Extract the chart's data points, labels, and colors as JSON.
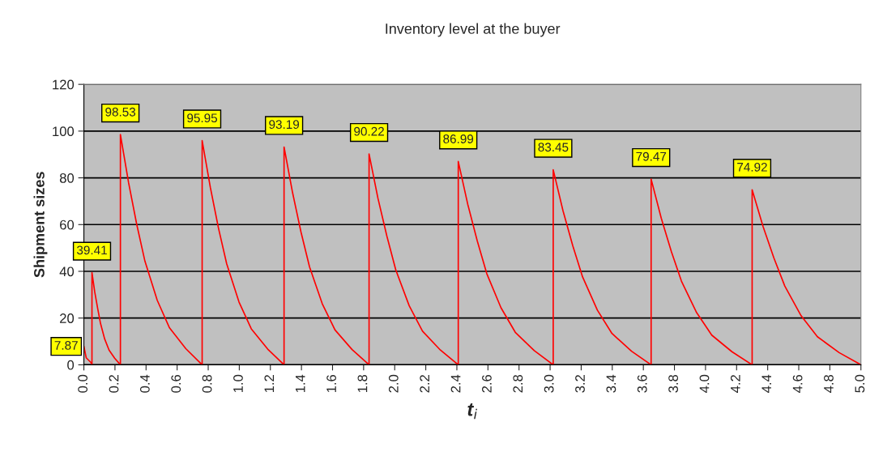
{
  "chart_data": {
    "type": "line",
    "title": "Inventory level at the buyer",
    "xlabel": "t$_{i}$",
    "ylabel": "Shipment sizes",
    "x": [
      0,
      0.015,
      0.045,
      0.052,
      0.052,
      0.07,
      0.089,
      0.107,
      0.134,
      0.162,
      0.198,
      0.235,
      0.235,
      0.288,
      0.34,
      0.393,
      0.472,
      0.551,
      0.656,
      0.761,
      0.761,
      0.814,
      0.866,
      0.919,
      0.998,
      1.077,
      1.183,
      1.288,
      1.288,
      1.343,
      1.397,
      1.452,
      1.534,
      1.616,
      1.726,
      1.835,
      1.835,
      1.892,
      1.95,
      2.007,
      2.093,
      2.179,
      2.294,
      2.409,
      2.409,
      2.47,
      2.531,
      2.592,
      2.684,
      2.776,
      2.898,
      3.02,
      3.02,
      3.083,
      3.146,
      3.209,
      3.304,
      3.398,
      3.524,
      3.65,
      3.65,
      3.715,
      3.78,
      3.845,
      3.943,
      4.04,
      4.17,
      4.3,
      4.3,
      4.37,
      4.44,
      4.51,
      4.615,
      4.72,
      4.86,
      5.0
    ],
    "series": [
      {
        "color": "#ff0000",
        "values": [
          7.87,
          3,
          1,
          0,
          39.41,
          31.1,
          24.0,
          17.7,
          11.0,
          6.3,
          2.8,
          0,
          98.53,
          77.8,
          60.1,
          44.3,
          27.6,
          15.8,
          6.9,
          0,
          95.95,
          75.8,
          58.5,
          43.2,
          26.9,
          15.4,
          6.7,
          0,
          93.19,
          73.6,
          56.8,
          41.9,
          26.1,
          14.9,
          6.5,
          0,
          90.22,
          71.3,
          55.0,
          40.6,
          25.3,
          14.4,
          6.3,
          0,
          86.99,
          68.7,
          53.1,
          39.1,
          24.4,
          13.9,
          6.1,
          0,
          83.45,
          65.9,
          50.9,
          37.6,
          23.4,
          13.4,
          5.8,
          0,
          79.47,
          62.8,
          48.5,
          35.8,
          22.3,
          12.7,
          5.6,
          0,
          74.92,
          59.2,
          45.7,
          33.7,
          21.0,
          12.0,
          5.2,
          0
        ],
        "value_labels": [
          "7.87",
          null,
          null,
          null,
          "39.41",
          null,
          null,
          null,
          null,
          null,
          null,
          null,
          "98.53",
          null,
          null,
          null,
          null,
          null,
          null,
          null,
          "95.95",
          null,
          null,
          null,
          null,
          null,
          null,
          null,
          "93.19",
          null,
          null,
          null,
          null,
          null,
          null,
          null,
          "90.22",
          null,
          null,
          null,
          null,
          null,
          null,
          null,
          "86.99",
          null,
          null,
          null,
          null,
          null,
          null,
          null,
          "83.45",
          null,
          null,
          null,
          null,
          null,
          null,
          null,
          "79.47",
          null,
          null,
          null,
          null,
          null,
          null,
          null,
          "74.92",
          null,
          null,
          null,
          null,
          null,
          null,
          null
        ]
      }
    ],
    "xlim": [
      0,
      5
    ],
    "ylim": [
      0,
      120
    ],
    "xticks": [
      {
        "value": 0,
        "label": "0.0"
      },
      0.2,
      0.4,
      0.6,
      0.8,
      {
        "value": 1,
        "label": "1.0"
      },
      1.2,
      1.4,
      1.6,
      1.8,
      {
        "value": 2,
        "label": "2.0"
      },
      2.2,
      2.4,
      2.6,
      2.8,
      {
        "value": 3,
        "label": "3.0"
      },
      3.2,
      3.4,
      3.6,
      3.8,
      {
        "value": 4,
        "label": "4.0"
      },
      4.2,
      4.4,
      4.6,
      4.8,
      {
        "value": 5,
        "label": "5.0"
      }
    ],
    "yticks": [
      0,
      20,
      40,
      60,
      80,
      100,
      120
    ],
    "grid": "y",
    "marker": "none",
    "line_style": "solid",
    "legend": false
  }
}
